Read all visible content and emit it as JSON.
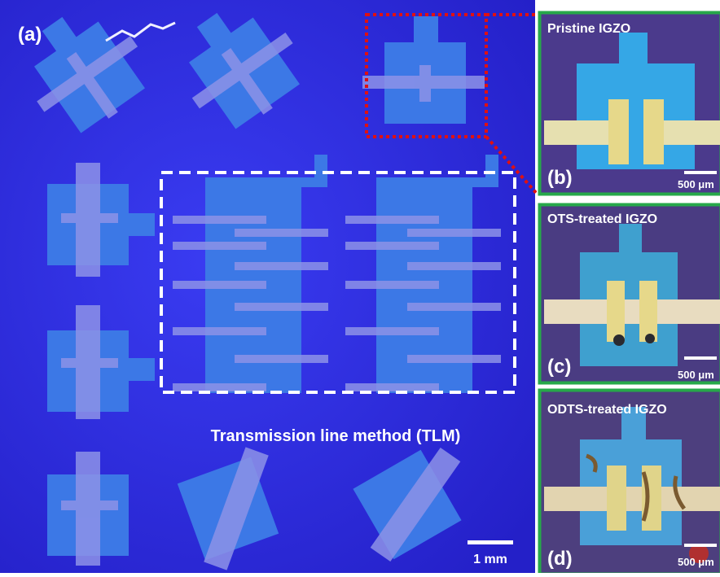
{
  "panels": {
    "a": {
      "label": "(a)",
      "annotation": "Transmission line method (TLM)",
      "scale_bar": "1 mm"
    },
    "b": {
      "title": "Pristine IGZO",
      "label": "(b)",
      "scale_bar": "500 μm"
    },
    "c": {
      "title": "OTS-treated IGZO",
      "label": "(c)",
      "scale_bar": "500 μm"
    },
    "d": {
      "title": "ODTS-treated IGZO",
      "label": "(d)",
      "scale_bar": "500 μm"
    }
  }
}
